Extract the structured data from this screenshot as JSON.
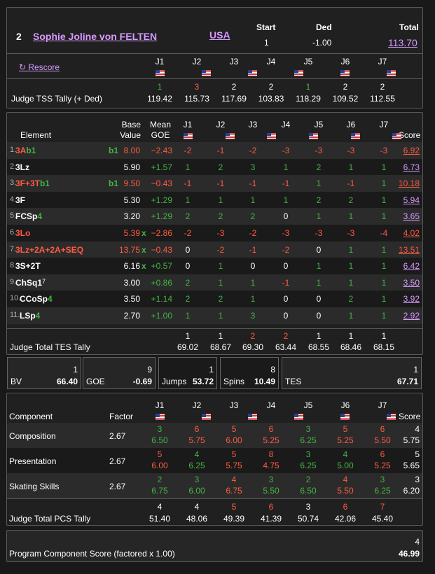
{
  "skater": {
    "rank": "2",
    "name": "Sophie Joline von FELTEN",
    "nation": "USA",
    "start_label": "Start",
    "start": "1",
    "ded_label": "Ded",
    "ded": "-1.00",
    "total_label": "Total",
    "total": "113.70"
  },
  "rescore": "↻ Rescore",
  "judges": [
    "J1",
    "J2",
    "J3",
    "J4",
    "J5",
    "J6",
    "J7"
  ],
  "tss": {
    "label": "Judge TSS Tally (+ Ded)",
    "ranks": [
      "1",
      "3",
      "2",
      "2",
      "1",
      "2",
      "2"
    ],
    "values": [
      "119.42",
      "115.73",
      "117.69",
      "103.83",
      "118.29",
      "109.52",
      "112.55"
    ]
  },
  "elements_header": {
    "element": "Element",
    "base": "Base",
    "value": "Value",
    "mean": "Mean",
    "goe": "GOE",
    "score": "Score"
  },
  "elements": [
    {
      "n": "1.",
      "name": "3A",
      "mark": "b1",
      "tag": "b1",
      "base": "8.00",
      "x": "",
      "goe": "−2.43",
      "j": [
        "-2",
        "-1",
        "-2",
        "-3",
        "-3",
        "-3",
        "-3"
      ],
      "score": "6.92",
      "red": true
    },
    {
      "n": "2.",
      "name": "3Lz",
      "mark": "",
      "tag": "",
      "base": "5.90",
      "x": "",
      "goe": "+1.57",
      "j": [
        "1",
        "2",
        "3",
        "1",
        "2",
        "1",
        "1"
      ],
      "score": "6.73",
      "red": false
    },
    {
      "n": "3.",
      "name": "3F+3T",
      "mark": "b1",
      "tag": "b1",
      "base": "9.50",
      "x": "",
      "goe": "−0.43",
      "j": [
        "-1",
        "-1",
        "-1",
        "-1",
        "1",
        "-1",
        "1"
      ],
      "score": "10.18",
      "red": true
    },
    {
      "n": "4.",
      "name": "3F",
      "mark": "",
      "tag": "",
      "base": "5.30",
      "x": "",
      "goe": "+1.29",
      "j": [
        "1",
        "1",
        "1",
        "1",
        "2",
        "2",
        "1"
      ],
      "score": "5.94",
      "red": false
    },
    {
      "n": "5.",
      "name": "FCSp",
      "mark": "4",
      "tag": "",
      "base": "3.20",
      "x": "",
      "goe": "+1.29",
      "j": [
        "2",
        "2",
        "2",
        "0",
        "1",
        "1",
        "1"
      ],
      "score": "3.65",
      "red": false
    },
    {
      "n": "6.",
      "name": "3Lo",
      "mark": "",
      "tag": "",
      "base": "5.39",
      "x": "x",
      "goe": "−2.86",
      "j": [
        "-2",
        "-3",
        "-2",
        "-3",
        "-3",
        "-3",
        "-4"
      ],
      "score": "4.02",
      "red": true
    },
    {
      "n": "7.",
      "name": "3Lz+2A+2A+SEQ",
      "mark": "",
      "tag": "",
      "base": "13.75",
      "x": "x",
      "goe": "−0.43",
      "j": [
        "0",
        "-2",
        "-1",
        "-2",
        "0",
        "1",
        "1"
      ],
      "score": "13.51",
      "red": true
    },
    {
      "n": "8.",
      "name": "3S+2T",
      "mark": "",
      "tag": "",
      "base": "6.16",
      "x": "x",
      "goe": "+0.57",
      "j": [
        "0",
        "1",
        "0",
        "0",
        "1",
        "1",
        "1"
      ],
      "score": "6.42",
      "red": false
    },
    {
      "n": "9.",
      "name": "ChSq1",
      "mark": "7",
      "tag": "",
      "base": "3.00",
      "x": "",
      "goe": "+0.86",
      "j": [
        "2",
        "1",
        "1",
        "-1",
        "1",
        "1",
        "1"
      ],
      "score": "3.50",
      "red": false
    },
    {
      "n": "10.",
      "name": "CCoSp",
      "mark": "4",
      "tag": "",
      "base": "3.50",
      "x": "",
      "goe": "+1.14",
      "j": [
        "2",
        "2",
        "1",
        "0",
        "0",
        "2",
        "1"
      ],
      "score": "3.92",
      "red": false
    },
    {
      "n": "11.",
      "name": "LSp",
      "mark": "4",
      "tag": "",
      "base": "2.70",
      "x": "",
      "goe": "+1.00",
      "j": [
        "1",
        "1",
        "3",
        "0",
        "0",
        "1",
        "1"
      ],
      "score": "2.92",
      "red": false
    }
  ],
  "tes_tally": {
    "label": "Judge Total TES Tally",
    "ranks": [
      "1",
      "1",
      "2",
      "2",
      "1",
      "1",
      "1"
    ],
    "values": [
      "69.02",
      "68.67",
      "69.30",
      "63.44",
      "68.55",
      "68.46",
      "68.15"
    ]
  },
  "summary": [
    {
      "label": "BV",
      "rank": "1",
      "value": "66.40"
    },
    {
      "label": "GOE",
      "rank": "9",
      "value": "-0.69"
    },
    {
      "label": "Jumps",
      "rank": "1",
      "value": "53.72"
    },
    {
      "label": "Spins",
      "rank": "8",
      "value": "10.49"
    },
    {
      "label": "TES",
      "rank": "1",
      "value": "67.71"
    }
  ],
  "pcs_header": {
    "component": "Component",
    "factor": "Factor",
    "score": "Score"
  },
  "components": [
    {
      "name": "Composition",
      "factor": "2.67",
      "ranks": [
        "3",
        "6",
        "5",
        "6",
        "3",
        "5",
        "6"
      ],
      "values": [
        "6.50",
        "5.75",
        "6.00",
        "5.25",
        "6.25",
        "5.25",
        "5.50"
      ],
      "rank": "4",
      "score": "5.75"
    },
    {
      "name": "Presentation",
      "factor": "2.67",
      "ranks": [
        "5",
        "4",
        "5",
        "8",
        "3",
        "4",
        "6"
      ],
      "values": [
        "6.00",
        "6.25",
        "5.75",
        "4.75",
        "6.25",
        "5.00",
        "5.25"
      ],
      "rank": "5",
      "score": "5.65"
    },
    {
      "name": "Skating Skills",
      "factor": "2.67",
      "ranks": [
        "2",
        "3",
        "4",
        "3",
        "2",
        "4",
        "3"
      ],
      "values": [
        "6.75",
        "6.00",
        "6.75",
        "5.50",
        "6.50",
        "5.50",
        "6.25"
      ],
      "rank": "3",
      "score": "6.20"
    }
  ],
  "pcs_tally": {
    "label": "Judge Total PCS Tally",
    "ranks": [
      "4",
      "4",
      "5",
      "6",
      "3",
      "6",
      "7"
    ],
    "values": [
      "51.40",
      "48.06",
      "49.39",
      "41.39",
      "50.74",
      "42.06",
      "45.40"
    ]
  },
  "pcs_total": {
    "label": "Program Component Score (factored x 1.00)",
    "rank": "4",
    "value": "46.99"
  },
  "colors": {
    "green": "#43b443",
    "red": "#ff5b43",
    "purple": "#d69bff",
    "background": "#191919"
  }
}
